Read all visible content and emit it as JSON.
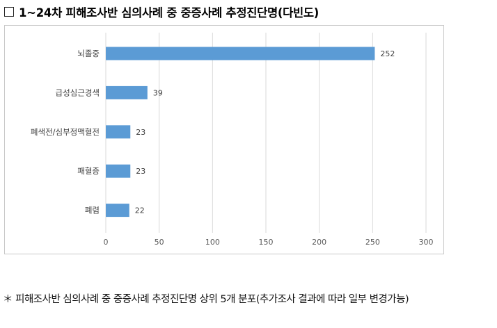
{
  "header": {
    "title": "1~24차 피해조사반 심의사례 중 중증사례 추정진단명(다빈도)"
  },
  "chart_data": {
    "type": "bar",
    "orientation": "horizontal",
    "categories": [
      "뇌졸중",
      "급성심근경색",
      "폐색전/심부정맥혈전",
      "패혈증",
      "폐렴"
    ],
    "values": [
      252,
      39,
      23,
      23,
      22
    ],
    "xlim": [
      0,
      300
    ],
    "xticks": [
      0,
      50,
      100,
      150,
      200,
      250,
      300
    ],
    "grid": "vertical",
    "bar_color": "#5b9bd5",
    "grid_color": "#d9d9d9",
    "legend": "none"
  },
  "footnote": {
    "text": "＊ 피해조사반 심의사례 중 중증사례 추정진단명 상위 5개 분포(추가조사 결과에 따라 일부 변경가능)"
  }
}
